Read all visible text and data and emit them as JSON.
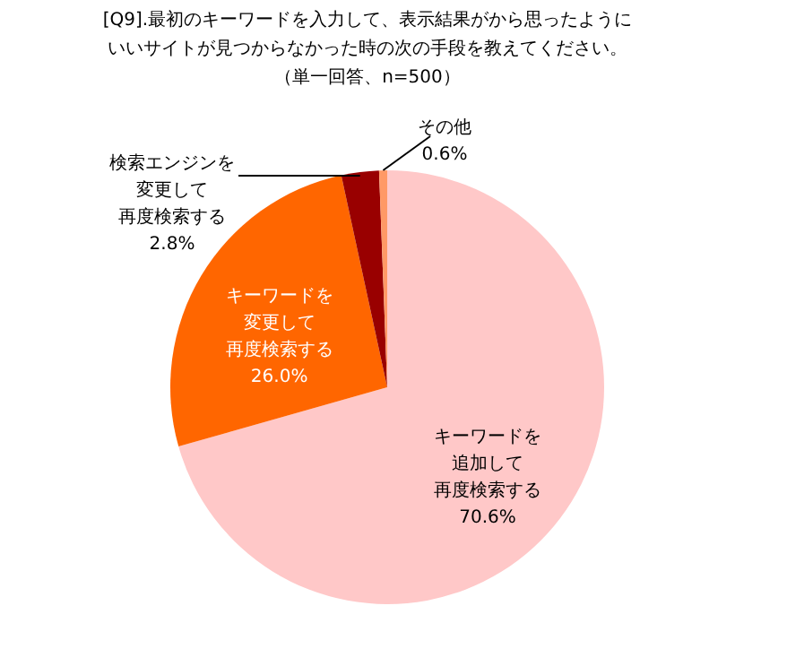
{
  "chart_data": {
    "type": "pie",
    "title": "[Q9].最初のキーワードを入力して、表示結果がから思ったようにいいサイトが見つからなかった時の次の手段を教えてください。",
    "subtitle": "（単一回答、n=500）",
    "categories": [
      "キーワードを追加して再度検索する",
      "キーワードを変更して再度検索する",
      "検索エンジンを変更して再度検索する",
      "その他"
    ],
    "values": [
      70.6,
      26.0,
      2.8,
      0.6
    ],
    "colors": [
      "#ffc8c8",
      "#ff6600",
      "#990000",
      "#ff9966"
    ],
    "value_labels": [
      "70.6%",
      "26.0%",
      "2.8%",
      "0.6%"
    ]
  }
}
